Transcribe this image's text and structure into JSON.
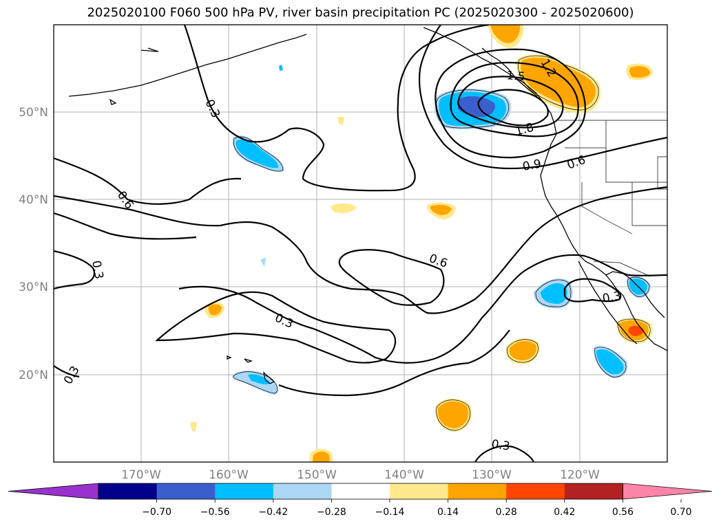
{
  "title": "2025020100 F060 500 hPa PV, river basin precipitation PC (2025020300 - 2025020600)",
  "map": {
    "lon_labels": [
      "170°W",
      "160°W",
      "150°W",
      "140°W",
      "130°W",
      "120°W"
    ],
    "lat_labels": [
      "50°N",
      "40°N",
      "30°N",
      "20°N"
    ],
    "contour_labels": [
      "0.3",
      "0.6",
      "0.3",
      "0.6",
      "0.3",
      "0.3",
      "0.6",
      "0.9",
      "1.5",
      "1.8",
      "1.2",
      "0.3",
      "0.3"
    ],
    "grid": true
  },
  "colorbar": {
    "colors": [
      "#9932cc",
      "#00008b",
      "#3a5fcd",
      "#00bfff",
      "#add8f5",
      "#ffffff",
      "#ffe98c",
      "#ffa500",
      "#ff4500",
      "#b22222",
      "#ff85a8"
    ],
    "ticks": [
      "−0.70",
      "−0.56",
      "−0.42",
      "−0.28",
      "−0.14",
      "0.14",
      "0.28",
      "0.42",
      "0.56",
      "0.70"
    ]
  }
}
